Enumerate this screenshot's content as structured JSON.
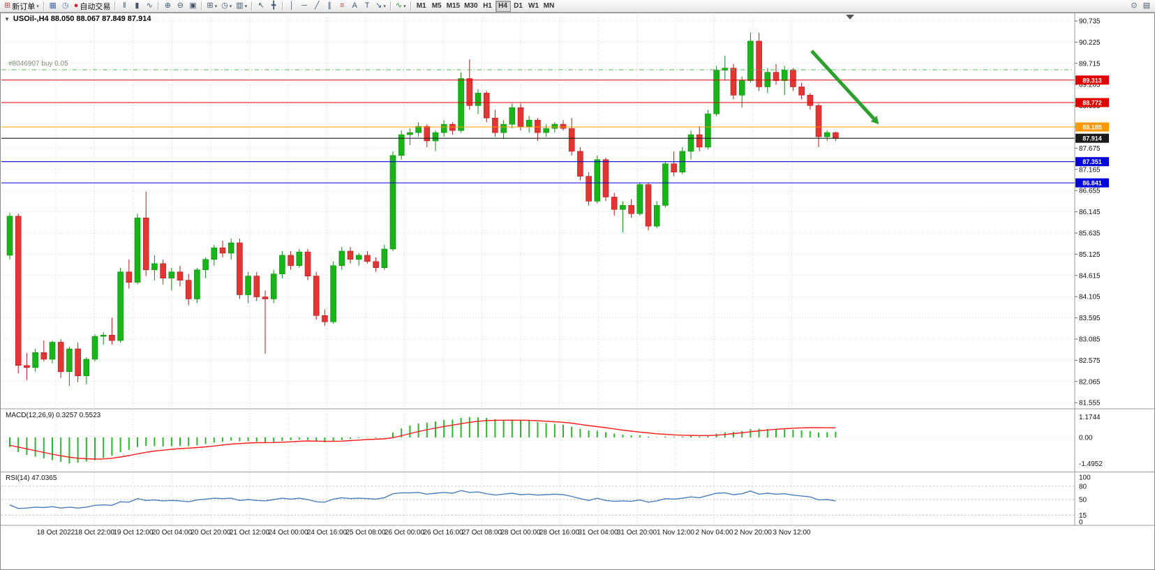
{
  "toolbar": {
    "caret_glyph": "▾",
    "left_groups": [
      {
        "items": [
          {
            "name": "new-order",
            "glyph": "⊞",
            "glyph_color": "#b84a4a",
            "label": "新订单",
            "caret": true
          }
        ]
      },
      {
        "items": [
          {
            "name": "charts",
            "glyph": "▦",
            "glyph_color": "#4a6fa5"
          },
          {
            "name": "market-watch",
            "glyph": "◷",
            "glyph_color": "#4a6fa5"
          },
          {
            "name": "autotrading",
            "glyph": "●",
            "glyph_color": "#cc2222",
            "label": "自动交易"
          }
        ]
      },
      {
        "items": [
          {
            "name": "bar-chart",
            "glyph": "‖"
          },
          {
            "name": "candlestick-chart",
            "glyph": "▮"
          },
          {
            "name": "line-chart",
            "glyph": "∿"
          }
        ]
      },
      {
        "items": [
          {
            "name": "zoom-in",
            "glyph": "⊕"
          },
          {
            "name": "zoom-out",
            "glyph": "⊖"
          },
          {
            "name": "tile-windows",
            "glyph": "▣"
          }
        ]
      },
      {
        "items": [
          {
            "name": "new-chart",
            "glyph": "⊞",
            "caret": true
          },
          {
            "name": "period-selector",
            "glyph": "◷",
            "caret": true
          },
          {
            "name": "template-selector",
            "glyph": "▥",
            "caret": true
          }
        ]
      },
      {
        "items": [
          {
            "name": "cursor",
            "glyph": "↖"
          },
          {
            "name": "crosshair",
            "glyph": "╋"
          }
        ]
      },
      {
        "items": [
          {
            "name": "vertical-line",
            "glyph": "│"
          },
          {
            "name": "horizontal-line",
            "glyph": "─"
          },
          {
            "name": "trendline",
            "glyph": "╱"
          },
          {
            "name": "equidistant-channel",
            "glyph": "∥"
          },
          {
            "name": "fibonacci-retracement",
            "glyph": "≡",
            "glyph_color": "#b84a4a"
          },
          {
            "name": "text",
            "glyph": "A"
          },
          {
            "name": "text-label",
            "glyph": "T"
          },
          {
            "name": "arrow-objects",
            "glyph": "↘",
            "caret": true
          }
        ]
      },
      {
        "items": [
          {
            "name": "indicators",
            "glyph": "∿",
            "glyph_color": "#2e9e2e",
            "caret": true
          }
        ]
      }
    ],
    "timeframes": [
      "M1",
      "M5",
      "M15",
      "M30",
      "H1",
      "H4",
      "D1",
      "W1",
      "MN"
    ],
    "active_timeframe": "H4",
    "right_items": [
      {
        "name": "search",
        "glyph": "⊙"
      },
      {
        "name": "layout",
        "glyph": "▤"
      }
    ]
  },
  "chart": {
    "collapse_glyph": "▼",
    "title": "USOil-,H4 88.050 88.067 87.849 87.914",
    "position": {
      "label": "#8046907 buy 0.05",
      "price": 89.56,
      "color": "#55b955"
    },
    "price_axis": [
      90.735,
      90.225,
      89.715,
      89.205,
      88.695,
      88.185,
      87.675,
      87.165,
      86.655,
      86.145,
      85.635,
      85.125,
      84.615,
      84.105,
      83.595,
      83.085,
      82.575,
      82.065,
      81.555
    ],
    "hlines": [
      {
        "price": 89.313,
        "label": "89.313",
        "color": "#e00000"
      },
      {
        "price": 88.772,
        "label": "88.772",
        "color": "#e00000"
      },
      {
        "price": 88.185,
        "label": "88.185",
        "color": "#ff9800"
      },
      {
        "price": 87.914,
        "label": "87.914",
        "color": "#1a1a1a",
        "role": "current-price"
      },
      {
        "price": 87.351,
        "label": "87.351",
        "color": "#0000dd"
      },
      {
        "price": 86.841,
        "label": "86.841",
        "color": "#0000dd"
      }
    ],
    "time_labels": [
      "18 Oct 2022",
      "18 Oct 22:00",
      "19 Oct 12:00",
      "20 Oct 04:00",
      "20 Oct 20:00",
      "21 Oct 12:00",
      "24 Oct 00:00",
      "24 Oct 16:00",
      "25 Oct 08:00",
      "26 Oct 00:00",
      "26 Oct 16:00",
      "27 Oct 08:00",
      "28 Oct 00:00",
      "28 Oct 16:00",
      "31 Oct 04:00",
      "31 Oct 20:00",
      "1 Nov 12:00",
      "2 Nov 04:00",
      "2 Nov 20:00",
      "3 Nov 12:00"
    ],
    "candles": [
      [
        85.1,
        86.12,
        85.0,
        86.04
      ],
      [
        86.04,
        86.1,
        82.26,
        82.45
      ],
      [
        82.45,
        82.75,
        82.1,
        82.4
      ],
      [
        82.4,
        82.85,
        82.3,
        82.76
      ],
      [
        82.76,
        83.05,
        82.55,
        82.6
      ],
      [
        82.6,
        83.05,
        82.5,
        83.01
      ],
      [
        83.01,
        83.08,
        82.15,
        82.3
      ],
      [
        82.3,
        82.9,
        81.96,
        82.85
      ],
      [
        82.85,
        83.0,
        82.05,
        82.2
      ],
      [
        82.2,
        82.65,
        82.0,
        82.6
      ],
      [
        82.6,
        83.2,
        82.55,
        83.15
      ],
      [
        83.15,
        83.25,
        82.95,
        83.18
      ],
      [
        83.18,
        83.6,
        82.95,
        83.05
      ],
      [
        83.05,
        84.8,
        83.0,
        84.7
      ],
      [
        84.7,
        85.0,
        84.3,
        84.45
      ],
      [
        84.45,
        86.1,
        84.4,
        86.0
      ],
      [
        86.0,
        86.63,
        84.6,
        84.75
      ],
      [
        84.75,
        85.1,
        84.5,
        84.9
      ],
      [
        84.9,
        85.0,
        84.4,
        84.55
      ],
      [
        84.55,
        84.8,
        84.25,
        84.7
      ],
      [
        84.7,
        84.85,
        84.35,
        84.5
      ],
      [
        84.5,
        84.65,
        83.9,
        84.05
      ],
      [
        84.05,
        84.8,
        83.95,
        84.75
      ],
      [
        84.75,
        85.05,
        84.55,
        85.0
      ],
      [
        85.0,
        85.35,
        84.85,
        85.28
      ],
      [
        85.28,
        85.45,
        85.05,
        85.15
      ],
      [
        85.15,
        85.5,
        85.0,
        85.4
      ],
      [
        85.4,
        85.5,
        84.05,
        84.15
      ],
      [
        84.15,
        84.7,
        83.95,
        84.6
      ],
      [
        84.6,
        84.7,
        84.0,
        84.1
      ],
      [
        84.1,
        84.25,
        82.73,
        84.05
      ],
      [
        84.05,
        84.75,
        83.95,
        84.65
      ],
      [
        84.65,
        85.2,
        84.55,
        85.1
      ],
      [
        85.1,
        85.2,
        84.75,
        84.85
      ],
      [
        84.85,
        85.25,
        84.8,
        85.18
      ],
      [
        85.18,
        85.25,
        84.5,
        84.6
      ],
      [
        84.6,
        84.7,
        83.55,
        83.65
      ],
      [
        83.65,
        83.8,
        83.4,
        83.5
      ],
      [
        83.5,
        84.95,
        83.45,
        84.85
      ],
      [
        84.85,
        85.3,
        84.75,
        85.2
      ],
      [
        85.2,
        85.3,
        84.9,
        85.0
      ],
      [
        85.0,
        85.15,
        84.85,
        85.1
      ],
      [
        85.1,
        85.2,
        84.9,
        84.95
      ],
      [
        84.95,
        85.05,
        84.7,
        84.8
      ],
      [
        84.8,
        85.35,
        84.75,
        85.25
      ],
      [
        85.25,
        87.6,
        85.2,
        87.5
      ],
      [
        87.5,
        88.1,
        87.4,
        88.0
      ],
      [
        88.0,
        88.15,
        87.75,
        88.05
      ],
      [
        88.05,
        88.3,
        87.95,
        88.2
      ],
      [
        88.2,
        88.25,
        87.7,
        87.85
      ],
      [
        87.85,
        88.1,
        87.6,
        88.05
      ],
      [
        88.05,
        88.35,
        87.95,
        88.25
      ],
      [
        88.25,
        88.3,
        88.0,
        88.1
      ],
      [
        88.1,
        89.5,
        88.05,
        89.35
      ],
      [
        89.35,
        89.81,
        88.6,
        88.7
      ],
      [
        88.7,
        89.1,
        88.5,
        89.0
      ],
      [
        89.0,
        89.05,
        88.3,
        88.4
      ],
      [
        88.4,
        88.6,
        87.95,
        88.05
      ],
      [
        88.05,
        88.35,
        87.9,
        88.25
      ],
      [
        88.25,
        88.75,
        88.15,
        88.65
      ],
      [
        88.65,
        88.75,
        88.1,
        88.2
      ],
      [
        88.2,
        88.45,
        88.05,
        88.35
      ],
      [
        88.35,
        88.4,
        87.85,
        88.05
      ],
      [
        88.05,
        88.25,
        87.95,
        88.15
      ],
      [
        88.15,
        88.3,
        88.05,
        88.25
      ],
      [
        88.25,
        88.35,
        88.1,
        88.15
      ],
      [
        88.15,
        88.4,
        87.5,
        87.6
      ],
      [
        87.6,
        87.7,
        86.9,
        87.0
      ],
      [
        87.0,
        87.1,
        86.3,
        86.4
      ],
      [
        86.4,
        87.5,
        86.35,
        87.4
      ],
      [
        87.4,
        87.45,
        86.4,
        86.5
      ],
      [
        86.5,
        86.6,
        86.05,
        86.2
      ],
      [
        86.2,
        86.4,
        85.65,
        86.3
      ],
      [
        86.3,
        86.45,
        86.0,
        86.1
      ],
      [
        86.1,
        86.85,
        86.05,
        86.8
      ],
      [
        86.8,
        86.85,
        85.7,
        85.8
      ],
      [
        85.8,
        86.4,
        85.75,
        86.3
      ],
      [
        86.3,
        87.35,
        86.25,
        87.3
      ],
      [
        87.3,
        87.6,
        87.0,
        87.1
      ],
      [
        87.1,
        87.7,
        87.05,
        87.6
      ],
      [
        87.6,
        88.1,
        87.4,
        88.0
      ],
      [
        88.0,
        88.2,
        87.6,
        87.7
      ],
      [
        87.7,
        88.6,
        87.65,
        88.5
      ],
      [
        88.5,
        89.65,
        88.45,
        89.55
      ],
      [
        89.55,
        89.9,
        89.3,
        89.6
      ],
      [
        89.6,
        89.7,
        88.85,
        88.95
      ],
      [
        88.95,
        89.4,
        88.65,
        89.3
      ],
      [
        89.3,
        90.45,
        89.25,
        90.25
      ],
      [
        90.25,
        90.45,
        89.05,
        89.15
      ],
      [
        89.15,
        89.6,
        89.0,
        89.5
      ],
      [
        89.5,
        89.7,
        89.2,
        89.3
      ],
      [
        89.3,
        89.65,
        88.95,
        89.55
      ],
      [
        89.55,
        89.6,
        89.05,
        89.15
      ],
      [
        89.15,
        89.25,
        88.85,
        88.95
      ],
      [
        88.95,
        89.0,
        88.6,
        88.7
      ],
      [
        88.7,
        88.75,
        87.7,
        87.95
      ],
      [
        87.95,
        88.1,
        87.85,
        88.05
      ],
      [
        88.05,
        88.07,
        87.85,
        87.91
      ]
    ]
  },
  "macd": {
    "label": "MACD(12,26,9) 0.3257 0.5523",
    "axis": [
      "1.1744",
      "0.00",
      "-1.4952"
    ],
    "histogram": [
      -0.55,
      -0.85,
      -1.0,
      -1.1,
      -1.2,
      -1.3,
      -1.4,
      -1.4952,
      -1.45,
      -1.38,
      -1.3,
      -1.18,
      -1.05,
      -0.85,
      -0.72,
      -0.55,
      -0.48,
      -0.5,
      -0.52,
      -0.5,
      -0.48,
      -0.5,
      -0.45,
      -0.38,
      -0.3,
      -0.24,
      -0.18,
      -0.22,
      -0.22,
      -0.24,
      -0.28,
      -0.26,
      -0.2,
      -0.16,
      -0.12,
      -0.14,
      -0.22,
      -0.28,
      -0.24,
      -0.15,
      -0.08,
      -0.04,
      -0.02,
      -0.04,
      0.02,
      0.28,
      0.52,
      0.68,
      0.8,
      0.85,
      0.92,
      1.0,
      1.02,
      1.12,
      1.1744,
      1.15,
      1.12,
      1.05,
      1.0,
      1.0,
      0.98,
      0.95,
      0.88,
      0.82,
      0.78,
      0.72,
      0.62,
      0.5,
      0.4,
      0.38,
      0.3,
      0.22,
      0.16,
      0.12,
      0.12,
      0.04,
      0.02,
      0.06,
      0.04,
      0.05,
      0.08,
      0.06,
      0.12,
      0.22,
      0.3,
      0.32,
      0.36,
      0.48,
      0.5,
      0.48,
      0.46,
      0.46,
      0.44,
      0.4,
      0.36,
      0.28,
      0.3,
      0.3257
    ],
    "signal": [
      -0.45,
      -0.55,
      -0.65,
      -0.76,
      -0.86,
      -0.96,
      -1.05,
      -1.13,
      -1.19,
      -1.22,
      -1.24,
      -1.23,
      -1.19,
      -1.12,
      -1.04,
      -0.94,
      -0.85,
      -0.78,
      -0.73,
      -0.68,
      -0.64,
      -0.61,
      -0.58,
      -0.54,
      -0.49,
      -0.43,
      -0.38,
      -0.35,
      -0.32,
      -0.3,
      -0.3,
      -0.29,
      -0.27,
      -0.25,
      -0.22,
      -0.2,
      -0.21,
      -0.22,
      -0.22,
      -0.21,
      -0.18,
      -0.15,
      -0.12,
      -0.1,
      -0.08,
      -0.01,
      0.1,
      0.22,
      0.34,
      0.44,
      0.54,
      0.63,
      0.71,
      0.79,
      0.87,
      0.93,
      0.97,
      0.98,
      0.99,
      0.99,
      0.99,
      0.98,
      0.96,
      0.93,
      0.9,
      0.87,
      0.82,
      0.75,
      0.68,
      0.62,
      0.56,
      0.49,
      0.42,
      0.36,
      0.31,
      0.26,
      0.21,
      0.18,
      0.15,
      0.13,
      0.12,
      0.11,
      0.11,
      0.13,
      0.17,
      0.22,
      0.27,
      0.33,
      0.38,
      0.43,
      0.47,
      0.5,
      0.53,
      0.55,
      0.56,
      0.56,
      0.555,
      0.5523
    ]
  },
  "rsi": {
    "label": "RSI(14) 47.0365",
    "axis": [
      "100",
      "80",
      "50",
      "15",
      "0"
    ],
    "levels": [
      80,
      50,
      15
    ],
    "values": [
      38,
      30,
      31,
      33,
      32,
      34,
      31,
      33,
      31,
      33,
      37,
      38,
      37,
      45,
      44,
      52,
      48,
      49,
      47,
      48,
      47,
      45,
      49,
      51,
      53,
      52,
      53,
      48,
      50,
      48,
      47,
      50,
      53,
      51,
      53,
      50,
      45,
      44,
      51,
      54,
      52,
      53,
      52,
      51,
      54,
      63,
      65,
      65,
      66,
      62,
      64,
      66,
      64,
      70,
      66,
      67,
      63,
      60,
      62,
      64,
      61,
      62,
      60,
      61,
      62,
      61,
      57,
      52,
      48,
      53,
      48,
      46,
      47,
      46,
      49,
      44,
      47,
      52,
      51,
      53,
      56,
      54,
      59,
      64,
      65,
      61,
      63,
      69,
      62,
      64,
      62,
      63,
      60,
      58,
      56,
      49,
      50,
      47.04
    ]
  },
  "colors": {
    "bull": "#17b517",
    "bull_stroke": "#0d8c0d",
    "bear": "#e43535",
    "bear_stroke": "#b21b1b",
    "macd_bar": "#2db52d",
    "macd_signal": "#ff1a1a",
    "rsi_line": "#4b7dbb",
    "arrow": "#2e9e2e",
    "grid": "#cfcfcf"
  }
}
